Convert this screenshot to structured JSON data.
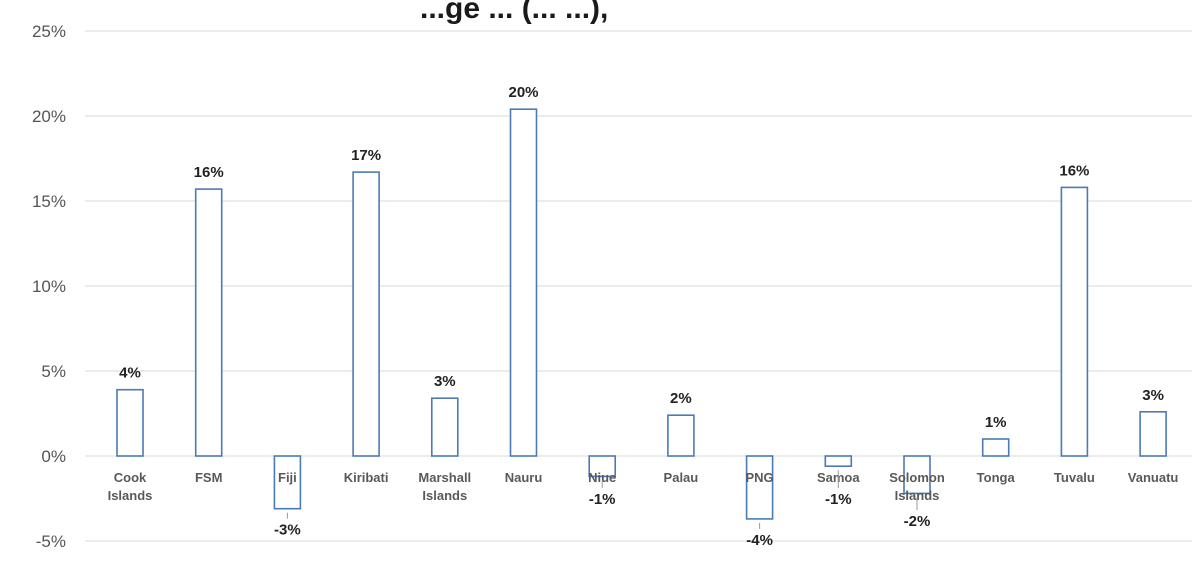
{
  "chart_data": {
    "type": "bar",
    "title": "...ge ... (... ...),",
    "categories": [
      [
        "Cook",
        "Islands"
      ],
      [
        "FSM"
      ],
      [
        "Fiji"
      ],
      [
        "Kiribati"
      ],
      [
        "Marshall",
        "Islands"
      ],
      [
        "Nauru"
      ],
      [
        "Niue"
      ],
      [
        "Palau"
      ],
      [
        "PNG"
      ],
      [
        "Samoa"
      ],
      [
        "Solomon",
        "Islands"
      ],
      [
        "Tonga"
      ],
      [
        "Tuvalu"
      ],
      [
        "Vanuatu"
      ]
    ],
    "values": [
      4,
      16,
      -3,
      17,
      3,
      20,
      -1,
      2,
      -4,
      -1,
      -2,
      1,
      16,
      3
    ],
    "bar_values_precise": [
      3.9,
      15.7,
      -3.1,
      16.7,
      3.4,
      20.4,
      -1.2,
      2.4,
      -3.7,
      -0.6,
      -2.2,
      1.0,
      15.8,
      2.6
    ],
    "data_labels": [
      "4%",
      "16%",
      "-3%",
      "17%",
      "3%",
      "20%",
      "-1%",
      "2%",
      "-4%",
      "-1%",
      "-2%",
      "1%",
      "16%",
      "3%"
    ],
    "yticks": [
      "-5%",
      "0%",
      "5%",
      "10%",
      "15%",
      "20%",
      "25%"
    ],
    "ylim": [
      -5,
      25
    ],
    "xlabel": "",
    "ylabel": "",
    "grid": true,
    "legend": "none",
    "colors": {
      "bar_stroke": "#4a7ab8",
      "bar_fill": "#ffffff",
      "grid": "#d9d9d9"
    }
  }
}
